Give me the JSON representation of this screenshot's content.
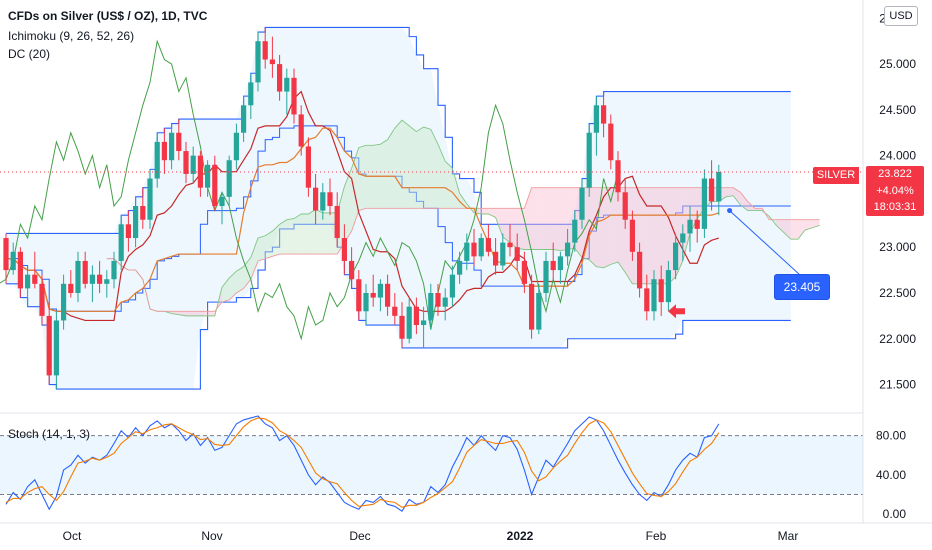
{
  "header": {
    "title": "CFDs on Silver (US$ / OZ), 1D, TVC",
    "ichimoku": "Ichimoku (9, 26, 52, 26)",
    "donchian": "DC (20)",
    "stoch": "Stoch (14, 1, 3)",
    "currency": "USD"
  },
  "price_tag": {
    "symbol": "SILVER",
    "price": "23.822",
    "change": "+4.04%",
    "countdown": "18:03:31"
  },
  "annotation": {
    "label": "23.405"
  },
  "colors": {
    "up": "#26a69a",
    "down": "#f23645",
    "donchian": "#2962ff",
    "tenkan": "#c62828",
    "kijun": "#e67c2c",
    "chikou": "#43a047",
    "stoch_k": "#2962ff",
    "stoch_d": "#f57c00",
    "arrow": "#f23645"
  },
  "chart_data": [
    {
      "type": "candlestick",
      "title": "CFDs on Silver (US$ / OZ), 1D, TVC",
      "y_ticks": [
        "21.500",
        "22.000",
        "22.500",
        "23.000",
        "23.500",
        "24.000",
        "24.500",
        "25.000",
        "25.500"
      ],
      "ylim": [
        21.2,
        25.7
      ],
      "x_ticks": [
        "Oct",
        "Nov",
        "Dec",
        "2022",
        "Feb",
        "Mar"
      ],
      "last_price": 23.822,
      "candles": [
        [
          23.1,
          23.15,
          22.6,
          22.75
        ],
        [
          22.75,
          23.05,
          22.7,
          22.95
        ],
        [
          22.95,
          23.0,
          22.45,
          22.55
        ],
        [
          22.55,
          22.8,
          22.35,
          22.7
        ],
        [
          22.7,
          22.95,
          22.55,
          22.6
        ],
        [
          22.6,
          22.7,
          22.15,
          22.25
        ],
        [
          22.25,
          22.4,
          21.5,
          21.6
        ],
        [
          21.6,
          22.3,
          21.45,
          22.2
        ],
        [
          22.2,
          22.7,
          22.1,
          22.6
        ],
        [
          22.6,
          22.75,
          22.45,
          22.5
        ],
        [
          22.5,
          22.95,
          22.4,
          22.85
        ],
        [
          22.85,
          22.95,
          22.55,
          22.6
        ],
        [
          22.6,
          22.8,
          22.4,
          22.7
        ],
        [
          22.7,
          22.85,
          22.5,
          22.6
        ],
        [
          22.6,
          22.75,
          22.45,
          22.65
        ],
        [
          22.65,
          22.95,
          22.55,
          22.85
        ],
        [
          22.85,
          23.35,
          22.75,
          23.25
        ],
        [
          23.25,
          23.4,
          22.95,
          23.1
        ],
        [
          23.1,
          23.55,
          23.0,
          23.45
        ],
        [
          23.45,
          23.65,
          23.2,
          23.3
        ],
        [
          23.3,
          23.85,
          23.2,
          23.75
        ],
        [
          23.75,
          24.25,
          23.65,
          24.15
        ],
        [
          24.15,
          24.3,
          23.8,
          23.95
        ],
        [
          23.95,
          24.35,
          23.85,
          24.25
        ],
        [
          24.25,
          24.4,
          23.95,
          24.05
        ],
        [
          24.05,
          24.15,
          23.7,
          23.8
        ],
        [
          23.8,
          24.1,
          23.7,
          24.0
        ],
        [
          24.0,
          24.05,
          23.55,
          23.65
        ],
        [
          23.65,
          23.95,
          23.55,
          23.9
        ],
        [
          23.9,
          24.0,
          23.4,
          23.45
        ],
        [
          23.45,
          23.6,
          23.25,
          23.55
        ],
        [
          23.55,
          24.0,
          23.45,
          23.95
        ],
        [
          23.95,
          24.35,
          23.85,
          24.25
        ],
        [
          24.25,
          24.65,
          24.15,
          24.55
        ],
        [
          24.55,
          24.9,
          24.4,
          24.8
        ],
        [
          24.8,
          25.35,
          24.7,
          25.25
        ],
        [
          25.25,
          25.4,
          24.95,
          25.05
        ],
        [
          25.05,
          25.3,
          24.85,
          25.0
        ],
        [
          25.0,
          25.1,
          24.6,
          24.7
        ],
        [
          24.7,
          24.95,
          24.45,
          24.85
        ],
        [
          24.85,
          24.95,
          24.35,
          24.45
        ],
        [
          24.45,
          24.55,
          24.0,
          24.1
        ],
        [
          24.1,
          24.2,
          23.55,
          23.65
        ],
        [
          23.65,
          23.8,
          23.25,
          23.4
        ],
        [
          23.4,
          23.7,
          23.3,
          23.6
        ],
        [
          23.6,
          23.75,
          23.35,
          23.45
        ],
        [
          23.45,
          23.6,
          23.0,
          23.1
        ],
        [
          23.1,
          23.25,
          22.7,
          22.85
        ],
        [
          22.85,
          23.0,
          22.55,
          22.65
        ],
        [
          22.65,
          22.75,
          22.2,
          22.3
        ],
        [
          22.3,
          22.6,
          22.15,
          22.5
        ],
        [
          22.5,
          22.7,
          22.35,
          22.45
        ],
        [
          22.45,
          22.65,
          22.3,
          22.6
        ],
        [
          22.6,
          22.7,
          22.25,
          22.35
        ],
        [
          22.35,
          22.5,
          22.15,
          22.25
        ],
        [
          22.25,
          22.4,
          21.9,
          22.0
        ],
        [
          22.0,
          22.45,
          21.95,
          22.35
        ],
        [
          22.35,
          22.45,
          22.05,
          22.15
        ],
        [
          22.15,
          22.35,
          21.9,
          22.2
        ],
        [
          22.2,
          22.6,
          22.1,
          22.5
        ],
        [
          22.5,
          22.6,
          22.25,
          22.35
        ],
        [
          22.35,
          22.55,
          22.2,
          22.45
        ],
        [
          22.45,
          22.8,
          22.35,
          22.7
        ],
        [
          22.7,
          22.95,
          22.6,
          22.85
        ],
        [
          22.85,
          23.15,
          22.75,
          23.05
        ],
        [
          23.05,
          23.2,
          22.8,
          22.9
        ],
        [
          22.9,
          23.15,
          22.85,
          23.1
        ],
        [
          23.1,
          23.25,
          22.9,
          22.95
        ],
        [
          22.95,
          23.1,
          22.7,
          22.8
        ],
        [
          22.8,
          23.15,
          22.75,
          23.05
        ],
        [
          23.05,
          23.25,
          22.9,
          23.0
        ],
        [
          23.0,
          23.15,
          22.75,
          22.85
        ],
        [
          22.85,
          22.95,
          22.5,
          22.6
        ],
        [
          22.6,
          22.7,
          22.0,
          22.1
        ],
        [
          22.1,
          22.6,
          22.05,
          22.5
        ],
        [
          22.5,
          22.95,
          22.4,
          22.85
        ],
        [
          22.85,
          23.05,
          22.65,
          22.75
        ],
        [
          22.75,
          22.95,
          22.6,
          22.9
        ],
        [
          22.9,
          23.2,
          22.8,
          23.05
        ],
        [
          23.05,
          23.4,
          22.95,
          23.3
        ],
        [
          23.3,
          23.75,
          23.2,
          23.65
        ],
        [
          23.65,
          24.35,
          23.55,
          24.25
        ],
        [
          24.25,
          24.65,
          24.0,
          24.55
        ],
        [
          24.55,
          24.7,
          24.2,
          24.35
        ],
        [
          24.35,
          24.45,
          23.85,
          23.95
        ],
        [
          23.95,
          24.05,
          23.5,
          23.6
        ],
        [
          23.6,
          23.75,
          23.2,
          23.3
        ],
        [
          23.3,
          23.4,
          22.85,
          22.95
        ],
        [
          22.95,
          23.05,
          22.45,
          22.55
        ],
        [
          22.55,
          22.7,
          22.2,
          22.3
        ],
        [
          22.3,
          22.75,
          22.2,
          22.65
        ],
        [
          22.65,
          22.8,
          22.25,
          22.4
        ],
        [
          22.4,
          22.85,
          22.3,
          22.75
        ],
        [
          22.75,
          23.15,
          22.65,
          23.05
        ],
        [
          23.05,
          23.25,
          22.85,
          23.15
        ],
        [
          23.15,
          23.45,
          22.95,
          23.3
        ],
        [
          23.3,
          23.4,
          23.05,
          23.2
        ],
        [
          23.2,
          23.85,
          23.1,
          23.75
        ],
        [
          23.75,
          23.95,
          23.4,
          23.5
        ],
        [
          23.5,
          23.9,
          23.35,
          23.822
        ]
      ]
    },
    {
      "type": "line",
      "title": "Stoch (14, 1, 3)",
      "y_ticks": [
        "0.00",
        "40.00",
        "80.00"
      ],
      "ylim": [
        -8,
        100
      ],
      "levels": [
        20,
        80
      ],
      "series": [
        {
          "name": "%K",
          "values": [
            10,
            22,
            15,
            28,
            35,
            20,
            5,
            18,
            45,
            50,
            60,
            52,
            58,
            55,
            60,
            72,
            85,
            78,
            88,
            80,
            90,
            95,
            88,
            92,
            85,
            75,
            82,
            70,
            78,
            65,
            68,
            80,
            92,
            96,
            98,
            100,
            92,
            88,
            75,
            80,
            70,
            55,
            40,
            30,
            38,
            32,
            22,
            12,
            8,
            5,
            14,
            12,
            18,
            10,
            8,
            3,
            15,
            10,
            12,
            28,
            22,
            30,
            48,
            62,
            78,
            70,
            80,
            72,
            65,
            80,
            78,
            66,
            45,
            20,
            38,
            55,
            48,
            60,
            72,
            85,
            92,
            99,
            96,
            85,
            70,
            55,
            42,
            30,
            20,
            14,
            22,
            18,
            30,
            45,
            55,
            62,
            58,
            78,
            80,
            92
          ]
        },
        {
          "name": "%D",
          "values": [
            12,
            16,
            16,
            22,
            26,
            28,
            20,
            14,
            23,
            38,
            52,
            54,
            57,
            55,
            58,
            62,
            72,
            78,
            84,
            82,
            86,
            88,
            91,
            92,
            88,
            84,
            81,
            76,
            77,
            71,
            70,
            71,
            80,
            89,
            95,
            98,
            97,
            93,
            85,
            81,
            75,
            68,
            55,
            42,
            36,
            33,
            31,
            22,
            14,
            8,
            9,
            10,
            15,
            13,
            12,
            7,
            9,
            9,
            12,
            17,
            21,
            27,
            33,
            47,
            63,
            70,
            76,
            74,
            72,
            72,
            74,
            75,
            63,
            44,
            34,
            38,
            47,
            54,
            60,
            72,
            83,
            92,
            96,
            93,
            84,
            70,
            56,
            42,
            31,
            21,
            19,
            18,
            23,
            31,
            43,
            54,
            58,
            66,
            72,
            83
          ]
        }
      ]
    }
  ]
}
